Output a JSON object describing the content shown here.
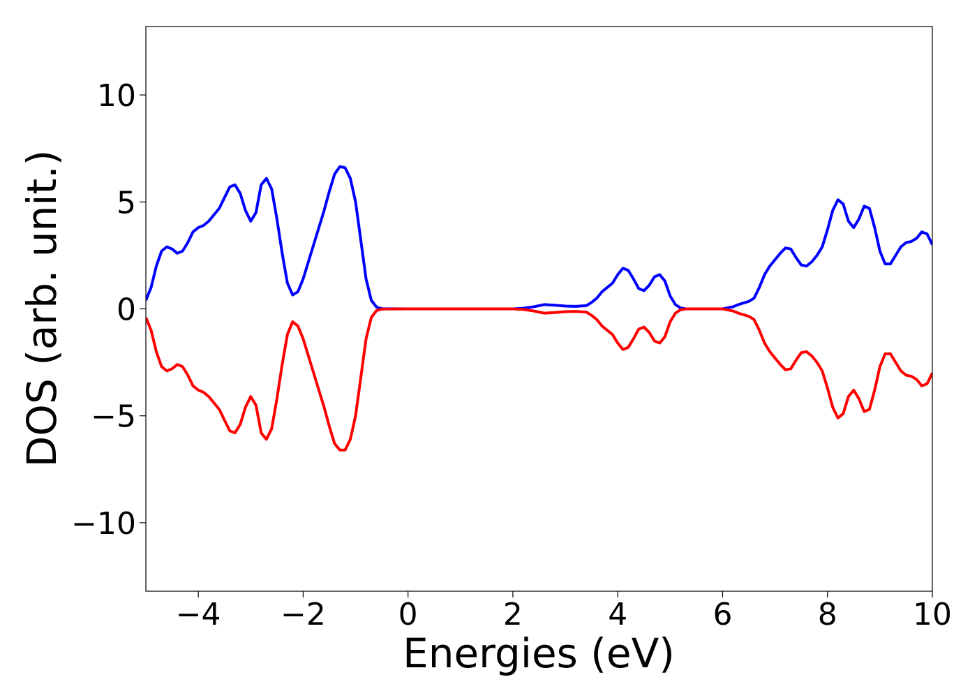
{
  "chart_data": {
    "type": "line",
    "xlabel": "Energies (eV)",
    "ylabel": "DOS (arb. unit.)",
    "x": [
      -5,
      -4.9,
      -4.8,
      -4.7,
      -4.6,
      -4.5,
      -4.4,
      -4.3,
      -4.2,
      -4.1,
      -4,
      -3.9,
      -3.8,
      -3.7,
      -3.6,
      -3.5,
      -3.4,
      -3.3,
      -3.2,
      -3.1,
      -3,
      -2.9,
      -2.8,
      -2.7,
      -2.6,
      -2.5,
      -2.4,
      -2.3,
      -2.2,
      -2.1,
      -2,
      -1.9,
      -1.8,
      -1.7,
      -1.6,
      -1.5,
      -1.4,
      -1.3,
      -1.2,
      -1.1,
      -1,
      -0.9,
      -0.8,
      -0.7,
      -0.6,
      -0.5,
      0,
      1,
      2,
      2.2,
      2.4,
      2.6,
      2.8,
      3,
      3.2,
      3.4,
      3.5,
      3.6,
      3.7,
      3.8,
      3.9,
      4,
      4.1,
      4.2,
      4.3,
      4.4,
      4.5,
      4.6,
      4.7,
      4.8,
      4.9,
      5,
      5.1,
      5.2,
      5.3,
      6,
      6.2,
      6.3,
      6.5,
      6.6,
      6.7,
      6.8,
      6.9,
      7,
      7.1,
      7.2,
      7.3,
      7.4,
      7.5,
      7.6,
      7.7,
      7.8,
      7.9,
      8,
      8.1,
      8.2,
      8.3,
      8.4,
      8.5,
      8.6,
      8.7,
      8.8,
      8.9,
      9,
      9.1,
      9.2,
      9.3,
      9.4,
      9.5,
      9.6,
      9.7,
      9.8,
      9.9,
      10
    ],
    "series": [
      {
        "color": "#0000ff",
        "values": [
          0.4,
          1.0,
          2.0,
          2.7,
          2.9,
          2.8,
          2.6,
          2.7,
          3.1,
          3.6,
          3.8,
          3.9,
          4.1,
          4.4,
          4.7,
          5.2,
          5.7,
          5.8,
          5.4,
          4.6,
          4.1,
          4.5,
          5.8,
          6.1,
          5.6,
          4.2,
          2.6,
          1.2,
          0.65,
          0.8,
          1.4,
          2.2,
          3.0,
          3.8,
          4.6,
          5.5,
          6.3,
          6.65,
          6.6,
          6.1,
          5.0,
          3.2,
          1.4,
          0.4,
          0.08,
          0.01,
          0,
          0,
          0,
          0.03,
          0.1,
          0.2,
          0.17,
          0.13,
          0.12,
          0.15,
          0.3,
          0.5,
          0.8,
          1.0,
          1.2,
          1.6,
          1.9,
          1.8,
          1.4,
          0.95,
          0.85,
          1.1,
          1.5,
          1.6,
          1.3,
          0.6,
          0.2,
          0.04,
          0,
          0,
          0.1,
          0.2,
          0.35,
          0.5,
          1.0,
          1.6,
          2.0,
          2.3,
          2.6,
          2.85,
          2.8,
          2.4,
          2.05,
          2.0,
          2.2,
          2.5,
          2.9,
          3.7,
          4.6,
          5.1,
          4.9,
          4.1,
          3.8,
          4.2,
          4.8,
          4.7,
          3.8,
          2.7,
          2.1,
          2.1,
          2.5,
          2.9,
          3.1,
          3.15,
          3.3,
          3.6,
          3.5,
          3.0
        ]
      },
      {
        "color": "#ff0000",
        "values": [
          -0.4,
          -1.0,
          -2.0,
          -2.7,
          -2.9,
          -2.8,
          -2.6,
          -2.7,
          -3.1,
          -3.6,
          -3.8,
          -3.9,
          -4.1,
          -4.4,
          -4.7,
          -5.2,
          -5.7,
          -5.8,
          -5.4,
          -4.6,
          -4.1,
          -4.5,
          -5.8,
          -6.1,
          -5.6,
          -4.2,
          -2.6,
          -1.2,
          -0.6,
          -0.8,
          -1.4,
          -2.2,
          -3.0,
          -3.8,
          -4.6,
          -5.5,
          -6.3,
          -6.6,
          -6.6,
          -6.1,
          -5.0,
          -3.2,
          -1.4,
          -0.4,
          -0.08,
          -0.01,
          0,
          0,
          0,
          -0.03,
          -0.1,
          -0.2,
          -0.17,
          -0.13,
          -0.12,
          -0.15,
          -0.3,
          -0.5,
          -0.8,
          -1.0,
          -1.2,
          -1.6,
          -1.9,
          -1.8,
          -1.4,
          -0.95,
          -0.85,
          -1.1,
          -1.5,
          -1.6,
          -1.3,
          -0.6,
          -0.2,
          -0.04,
          0,
          0,
          -0.1,
          -0.2,
          -0.35,
          -0.5,
          -1.0,
          -1.6,
          -2.0,
          -2.3,
          -2.6,
          -2.85,
          -2.8,
          -2.4,
          -2.05,
          -2.0,
          -2.2,
          -2.5,
          -2.9,
          -3.7,
          -4.6,
          -5.1,
          -4.9,
          -4.1,
          -3.8,
          -4.2,
          -4.8,
          -4.7,
          -3.8,
          -2.7,
          -2.1,
          -2.1,
          -2.5,
          -2.9,
          -3.1,
          -3.15,
          -3.3,
          -3.6,
          -3.5,
          -3.0
        ]
      }
    ],
    "xlim": [
      -5,
      10
    ],
    "xticks": [
      {
        "value": -4,
        "label": "−4"
      },
      {
        "value": -2,
        "label": "−2"
      },
      0,
      2,
      4,
      6,
      8,
      10
    ],
    "ylim": [
      -13.2,
      13.2
    ],
    "yticks": [
      {
        "value": -10,
        "label": "−10"
      },
      {
        "value": -5,
        "label": "−5"
      },
      0,
      5,
      10
    ]
  }
}
